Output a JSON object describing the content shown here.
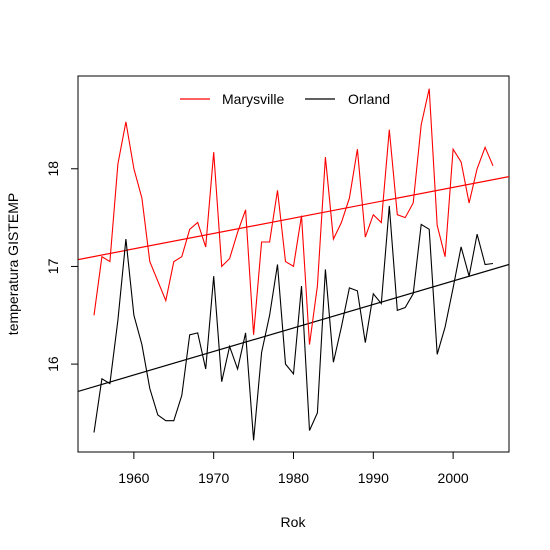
{
  "chart_data": {
    "type": "line",
    "title": "",
    "xlabel": "Rok",
    "ylabel": "temperatura GISTEMP",
    "xlim": [
      1953,
      2007
    ],
    "ylim": [
      15.1,
      18.95
    ],
    "x_ticks": [
      1960,
      1970,
      1980,
      1990,
      2000
    ],
    "y_ticks": [
      16,
      17,
      18
    ],
    "legend": {
      "placement": "top-center"
    },
    "grid": false,
    "x": [
      1955,
      1956,
      1957,
      1958,
      1959,
      1960,
      1961,
      1962,
      1963,
      1964,
      1965,
      1966,
      1967,
      1968,
      1969,
      1970,
      1971,
      1972,
      1973,
      1974,
      1975,
      1976,
      1977,
      1978,
      1979,
      1980,
      1981,
      1982,
      1983,
      1984,
      1985,
      1986,
      1987,
      1988,
      1989,
      1990,
      1991,
      1992,
      1993,
      1994,
      1995,
      1996,
      1997,
      1998,
      1999,
      2000,
      2001,
      2002,
      2003,
      2004,
      2005
    ],
    "series": [
      {
        "name": "Marysville",
        "color": "#ff0000",
        "values": [
          16.5,
          17.1,
          17.05,
          18.05,
          18.48,
          18.0,
          17.7,
          17.05,
          16.85,
          16.65,
          17.05,
          17.1,
          17.38,
          17.45,
          17.2,
          18.17,
          17.0,
          17.08,
          17.35,
          17.58,
          16.3,
          17.25,
          17.25,
          17.78,
          17.05,
          17.0,
          17.52,
          16.2,
          16.8,
          18.12,
          17.28,
          17.45,
          17.7,
          18.2,
          17.3,
          17.53,
          17.45,
          18.4,
          17.53,
          17.5,
          17.65,
          18.45,
          18.82,
          17.42,
          17.1,
          18.2,
          18.07,
          17.65,
          18.0,
          18.22,
          18.03
        ]
      },
      {
        "name": "Orland",
        "color": "#000000",
        "values": [
          15.3,
          15.85,
          15.8,
          16.45,
          17.28,
          16.5,
          16.2,
          15.75,
          15.48,
          15.42,
          15.42,
          15.68,
          16.3,
          16.32,
          15.95,
          16.9,
          15.82,
          16.18,
          15.95,
          16.32,
          15.22,
          16.12,
          16.5,
          17.02,
          16.0,
          15.9,
          16.8,
          15.32,
          15.5,
          16.97,
          16.02,
          16.38,
          16.78,
          16.75,
          16.22,
          16.72,
          16.62,
          17.62,
          16.55,
          16.58,
          16.72,
          17.43,
          17.38,
          16.1,
          16.38,
          16.78,
          17.2,
          16.9,
          17.33,
          17.02,
          17.03
        ]
      }
    ],
    "trendlines": [
      {
        "series": "Marysville",
        "color": "#ff0000",
        "x": [
          1953,
          2007
        ],
        "y": [
          17.07,
          17.92
        ]
      },
      {
        "series": "Orland",
        "color": "#000000",
        "x": [
          1953,
          2007
        ],
        "y": [
          15.72,
          17.02
        ]
      }
    ]
  }
}
